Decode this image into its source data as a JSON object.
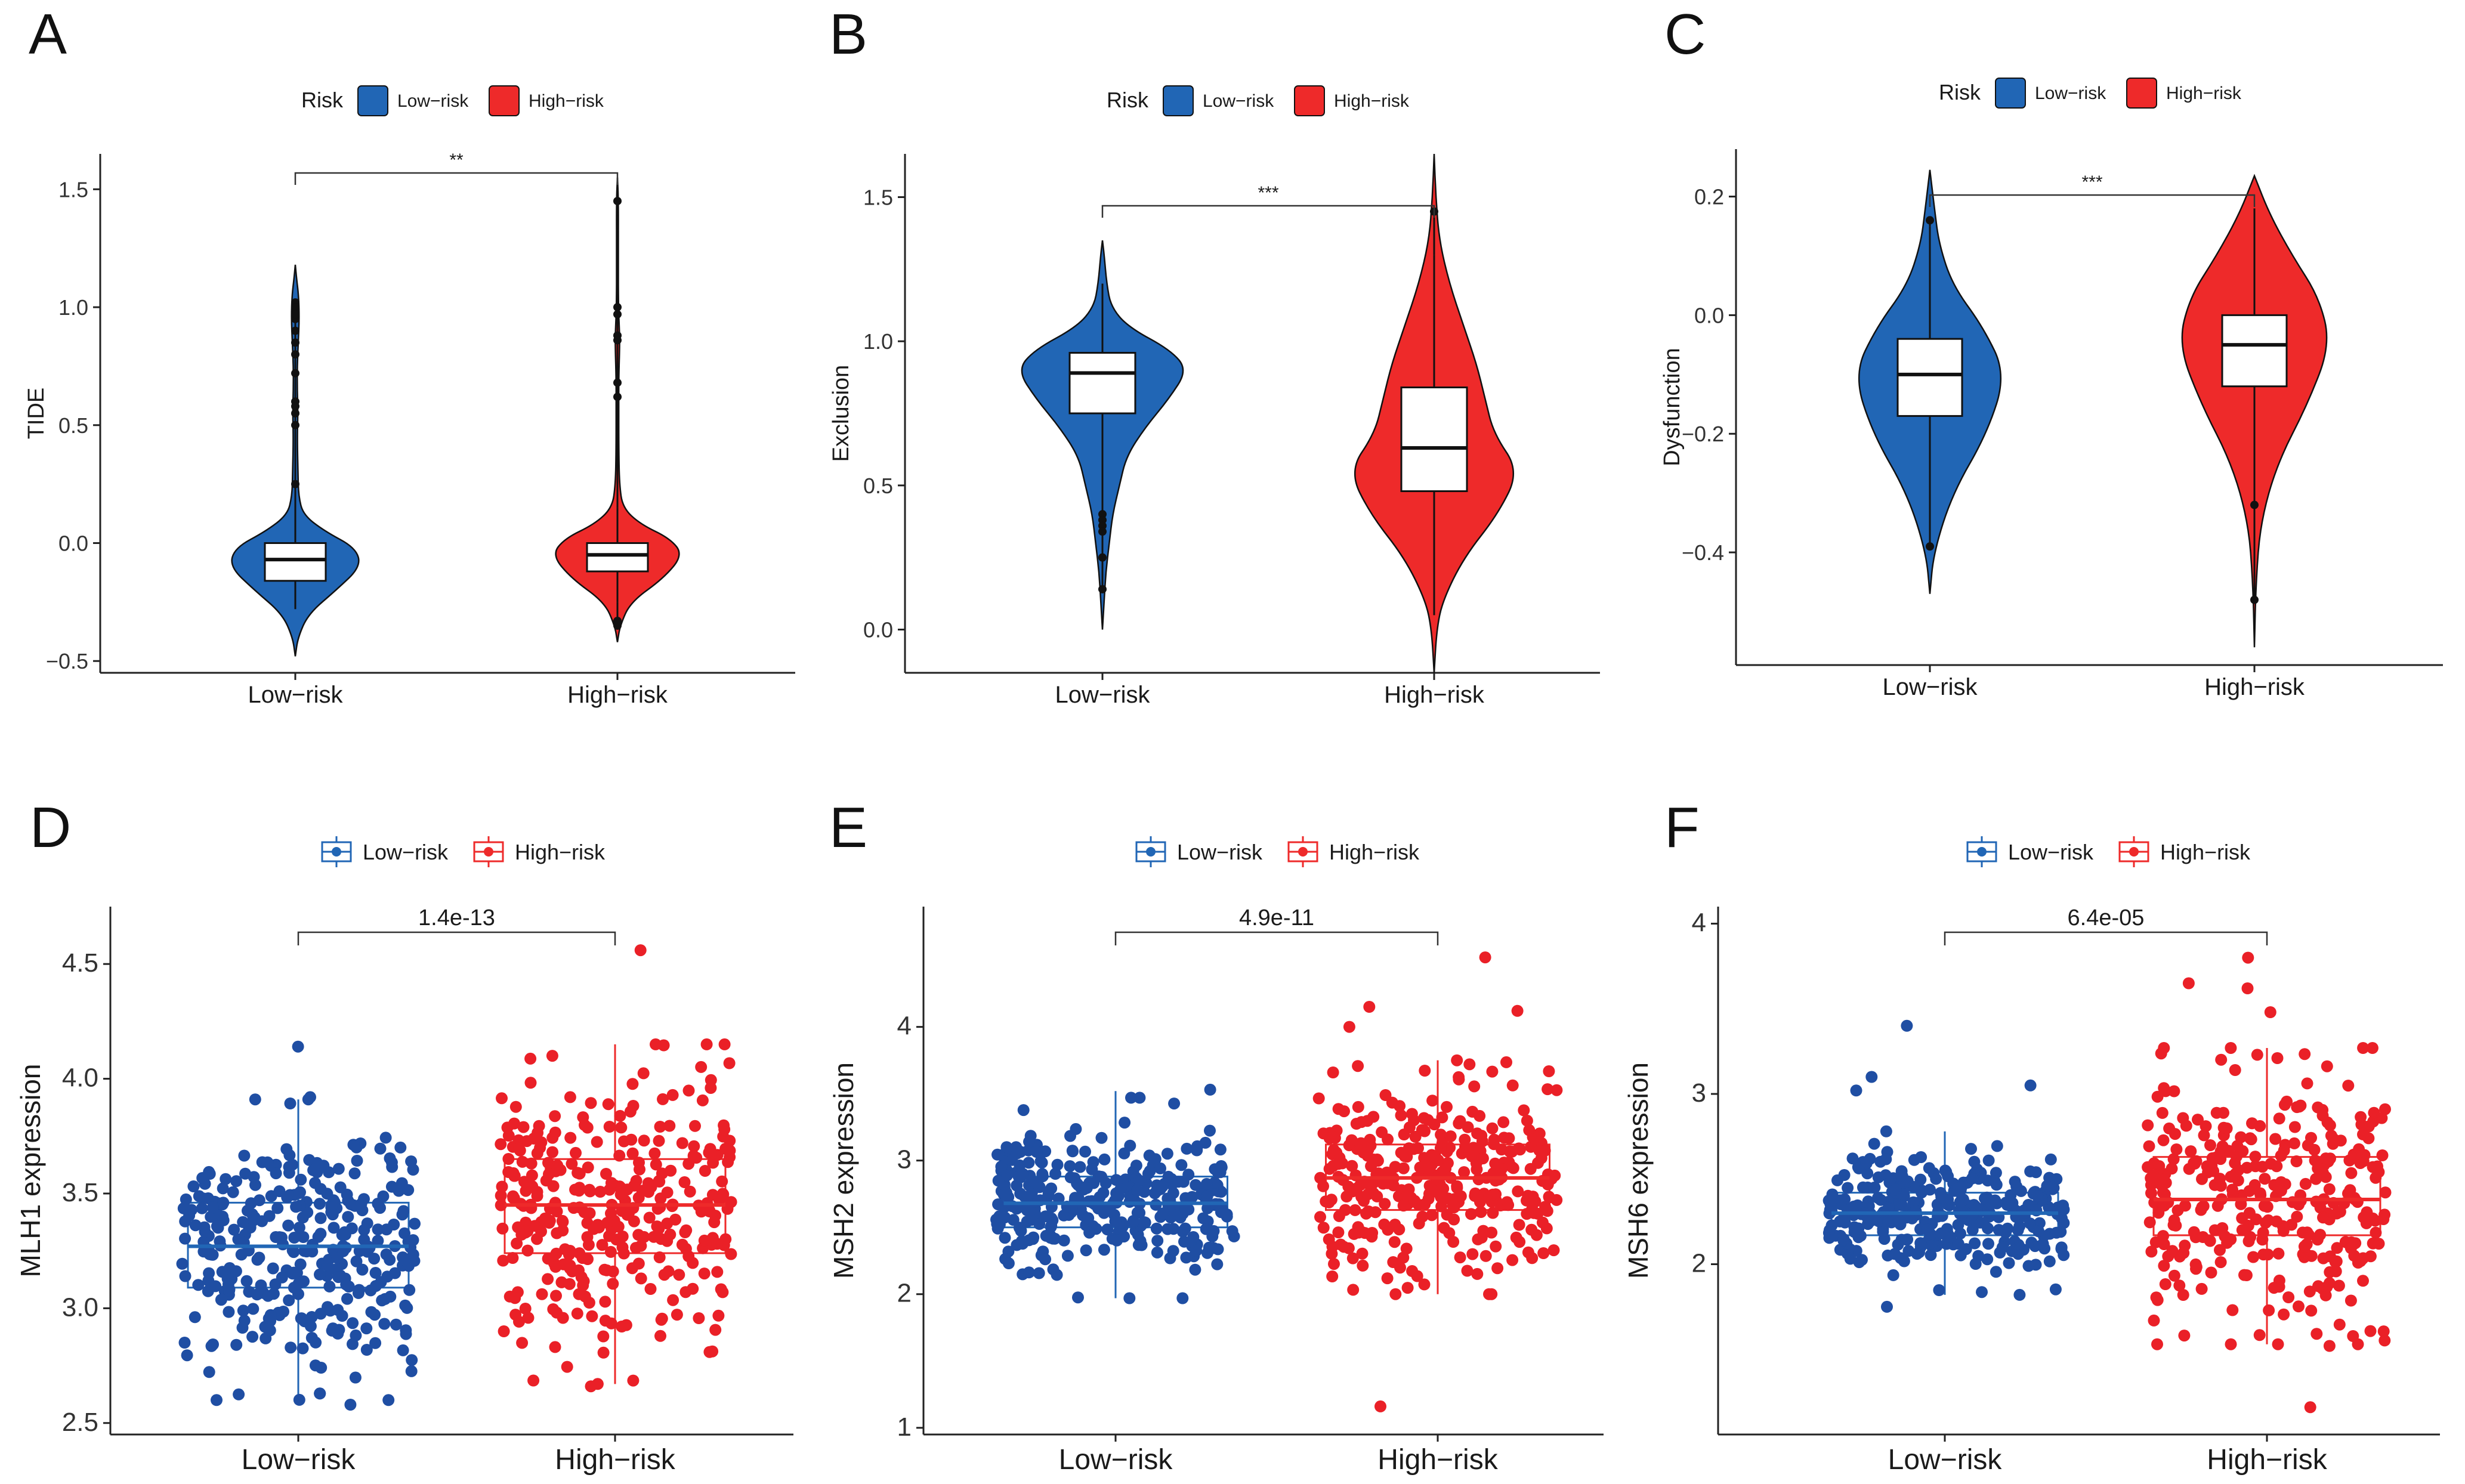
{
  "colors": {
    "low": "#2166b5",
    "high": "#ee2a2a",
    "low_point": "#1f4ea3",
    "high_point": "#ea2027",
    "axis": "#222222"
  },
  "chart_data": [
    {
      "panel": "A",
      "type": "violin",
      "ylabel": "TIDE",
      "ylim": [
        -0.55,
        1.65
      ],
      "yticks": [
        "1.5",
        "1.0",
        "0.5",
        "0.0",
        "-0.5"
      ],
      "ytick_values": [
        1.5,
        1.0,
        0.5,
        0.0,
        -0.5
      ],
      "categories": [
        "Low-risk",
        "High-risk"
      ],
      "legend_title": "Risk",
      "legend": [
        "Low-risk",
        "High-risk"
      ],
      "significance": "**",
      "series": [
        {
          "name": "Low-risk",
          "min": -0.48,
          "max": 1.18,
          "q1": -0.16,
          "median": -0.07,
          "q3": 0.0,
          "whisker_low": -0.28,
          "whisker_high": 0.12,
          "outliers": [
            1.02,
            1.0,
            0.98,
            0.95,
            0.9,
            0.85,
            0.8,
            0.72,
            0.6,
            0.58,
            0.55,
            0.5,
            0.25,
            0.98,
            0.97
          ],
          "density": [
            [
              -0.48,
              0.0
            ],
            [
              -0.4,
              0.04
            ],
            [
              -0.3,
              0.2
            ],
            [
              -0.2,
              0.62
            ],
            [
              -0.1,
              1.0
            ],
            [
              -0.02,
              0.92
            ],
            [
              0.05,
              0.45
            ],
            [
              0.12,
              0.12
            ],
            [
              0.2,
              0.05
            ],
            [
              0.3,
              0.04
            ],
            [
              0.45,
              0.03
            ],
            [
              0.55,
              0.04
            ],
            [
              0.65,
              0.03
            ],
            [
              0.75,
              0.03
            ],
            [
              0.85,
              0.045
            ],
            [
              0.95,
              0.06
            ],
            [
              1.05,
              0.05
            ],
            [
              1.12,
              0.02
            ],
            [
              1.18,
              0.0
            ]
          ]
        },
        {
          "name": "High-risk",
          "min": -0.42,
          "max": 1.55,
          "q1": -0.12,
          "median": -0.05,
          "q3": 0.0,
          "whisker_low": -0.25,
          "whisker_high": 0.15,
          "outliers": [
            1.45,
            1.0,
            0.97,
            0.88,
            0.86,
            0.68,
            0.62,
            -0.33,
            -0.35
          ],
          "density": [
            [
              -0.42,
              0.0
            ],
            [
              -0.35,
              0.04
            ],
            [
              -0.25,
              0.2
            ],
            [
              -0.15,
              0.7
            ],
            [
              -0.05,
              1.0
            ],
            [
              0.02,
              0.8
            ],
            [
              0.08,
              0.35
            ],
            [
              0.15,
              0.08
            ],
            [
              0.25,
              0.03
            ],
            [
              0.4,
              0.02
            ],
            [
              0.6,
              0.02
            ],
            [
              0.7,
              0.02
            ],
            [
              0.85,
              0.035
            ],
            [
              0.9,
              0.03
            ],
            [
              1.0,
              0.015
            ],
            [
              1.2,
              0.012
            ],
            [
              1.45,
              0.015
            ],
            [
              1.55,
              0.0
            ]
          ]
        }
      ]
    },
    {
      "panel": "B",
      "type": "violin",
      "ylabel": "Exclusion",
      "ylim": [
        -0.15,
        1.65
      ],
      "yticks": [
        "1.5",
        "1.0",
        "0.5",
        "0.0"
      ],
      "ytick_values": [
        1.5,
        1.0,
        0.5,
        0.0
      ],
      "categories": [
        "Low-risk",
        "High-risk"
      ],
      "legend_title": "Risk",
      "legend": [
        "Low-risk",
        "High-risk"
      ],
      "significance": "***",
      "series": [
        {
          "name": "Low-risk",
          "min": 0.0,
          "max": 1.35,
          "q1": 0.75,
          "median": 0.89,
          "q3": 0.96,
          "whisker_low": 0.45,
          "whisker_high": 1.2,
          "outliers": [
            0.4,
            0.38,
            0.36,
            0.34,
            0.25,
            0.14
          ],
          "density": [
            [
              0.0,
              0.0
            ],
            [
              0.1,
              0.02
            ],
            [
              0.2,
              0.04
            ],
            [
              0.3,
              0.08
            ],
            [
              0.4,
              0.12
            ],
            [
              0.5,
              0.2
            ],
            [
              0.6,
              0.28
            ],
            [
              0.7,
              0.5
            ],
            [
              0.8,
              0.78
            ],
            [
              0.9,
              1.0
            ],
            [
              0.97,
              0.8
            ],
            [
              1.05,
              0.3
            ],
            [
              1.12,
              0.1
            ],
            [
              1.2,
              0.05
            ],
            [
              1.3,
              0.02
            ],
            [
              1.35,
              0.0
            ]
          ]
        },
        {
          "name": "High-risk",
          "min": -0.15,
          "max": 1.65,
          "q1": 0.48,
          "median": 0.63,
          "q3": 0.84,
          "whisker_low": 0.05,
          "whisker_high": 1.3,
          "outliers": [
            1.45
          ],
          "density": [
            [
              -0.15,
              0.0
            ],
            [
              0.0,
              0.03
            ],
            [
              0.1,
              0.1
            ],
            [
              0.25,
              0.35
            ],
            [
              0.4,
              0.75
            ],
            [
              0.55,
              1.0
            ],
            [
              0.68,
              0.7
            ],
            [
              0.8,
              0.6
            ],
            [
              0.92,
              0.5
            ],
            [
              1.05,
              0.35
            ],
            [
              1.2,
              0.18
            ],
            [
              1.35,
              0.06
            ],
            [
              1.5,
              0.02
            ],
            [
              1.65,
              0.0
            ]
          ]
        }
      ]
    },
    {
      "panel": "C",
      "type": "violin",
      "ylabel": "Dysfunction",
      "ylim": [
        -0.59,
        0.28
      ],
      "yticks": [
        "0.2",
        "0.0",
        "-0.2",
        "-0.4"
      ],
      "ytick_values": [
        0.2,
        0.0,
        -0.2,
        -0.4
      ],
      "categories": [
        "Low-risk",
        "High-risk"
      ],
      "legend_title": "Risk",
      "legend": [
        "Low-risk",
        "High-risk"
      ],
      "significance": "***",
      "series": [
        {
          "name": "Low-risk",
          "min": -0.47,
          "max": 0.245,
          "q1": -0.17,
          "median": -0.1,
          "q3": -0.04,
          "whisker_low": -0.38,
          "whisker_high": 0.15,
          "outliers": [
            0.16,
            -0.39
          ],
          "density": [
            [
              -0.47,
              0.0
            ],
            [
              -0.4,
              0.05
            ],
            [
              -0.3,
              0.3
            ],
            [
              -0.2,
              0.75
            ],
            [
              -0.1,
              1.0
            ],
            [
              -0.02,
              0.7
            ],
            [
              0.05,
              0.3
            ],
            [
              0.12,
              0.12
            ],
            [
              0.18,
              0.06
            ],
            [
              0.245,
              0.0
            ]
          ]
        },
        {
          "name": "High-risk",
          "min": -0.56,
          "max": 0.235,
          "q1": -0.12,
          "median": -0.05,
          "q3": 0.0,
          "whisker_low": -0.32,
          "whisker_high": 0.18,
          "outliers": [
            -0.32,
            -0.48
          ],
          "density": [
            [
              -0.56,
              0.0
            ],
            [
              -0.45,
              0.02
            ],
            [
              -0.35,
              0.08
            ],
            [
              -0.25,
              0.3
            ],
            [
              -0.15,
              0.7
            ],
            [
              -0.05,
              1.0
            ],
            [
              0.03,
              0.85
            ],
            [
              0.1,
              0.5
            ],
            [
              0.17,
              0.2
            ],
            [
              0.235,
              0.0
            ]
          ]
        }
      ]
    },
    {
      "panel": "D",
      "type": "box_jitter",
      "ylabel": "MLH1 expression",
      "ylim": [
        2.45,
        4.75
      ],
      "yticks": [
        "4.5",
        "4.0",
        "3.5",
        "3.0",
        "2.5"
      ],
      "ytick_values": [
        4.5,
        4.0,
        3.5,
        3.0,
        2.5
      ],
      "categories": [
        "Low-risk",
        "High-risk"
      ],
      "legend": [
        "Low-risk",
        "High-risk"
      ],
      "significance": "1.4e-13",
      "series": [
        {
          "name": "Low-risk",
          "q1": 3.09,
          "median": 3.27,
          "q3": 3.46,
          "whisker_low": 2.6,
          "whisker_high": 3.91,
          "mean": 3.27,
          "sd": 0.26,
          "n": 330,
          "extremes": [
            4.14,
            2.58,
            2.6,
            3.92
          ]
        },
        {
          "name": "High-risk",
          "q1": 3.24,
          "median": 3.45,
          "q3": 3.65,
          "whisker_low": 2.67,
          "whisker_high": 4.15,
          "mean": 3.44,
          "sd": 0.3,
          "n": 330,
          "extremes": [
            4.56,
            2.66,
            4.15,
            4.1
          ]
        }
      ]
    },
    {
      "panel": "E",
      "type": "box_jitter",
      "ylabel": "MSH2 expression",
      "ylim": [
        0.95,
        4.9
      ],
      "yticks": [
        "4",
        "3",
        "2",
        "1"
      ],
      "ytick_values": [
        4,
        3,
        2,
        1
      ],
      "categories": [
        "Low-risk",
        "High-risk"
      ],
      "legend": [
        "Low-risk",
        "High-risk"
      ],
      "significance": "4.9e-11",
      "series": [
        {
          "name": "Low-risk",
          "q1": 2.5,
          "median": 2.68,
          "q3": 2.88,
          "whisker_low": 1.97,
          "whisker_high": 3.52,
          "mean": 2.69,
          "sd": 0.26,
          "n": 330,
          "extremes": [
            3.53,
            1.97,
            3.47
          ]
        },
        {
          "name": "High-risk",
          "q1": 2.63,
          "median": 2.87,
          "q3": 3.12,
          "whisker_low": 2.0,
          "whisker_high": 3.75,
          "mean": 2.87,
          "sd": 0.36,
          "n": 330,
          "extremes": [
            4.52,
            1.16,
            4.15,
            4.12,
            4.0,
            3.72
          ]
        }
      ]
    },
    {
      "panel": "F",
      "type": "box_jitter",
      "ylabel": "MSH6 expression",
      "ylim": [
        1.0,
        4.1
      ],
      "yticks": [
        "4",
        "3",
        "2"
      ],
      "ytick_values": [
        4,
        3,
        2
      ],
      "categories": [
        "Low-risk",
        "High-risk"
      ],
      "legend": [
        "Low-risk",
        "High-risk"
      ],
      "significance": "6.4e-05",
      "series": [
        {
          "name": "Low-risk",
          "q1": 2.17,
          "median": 2.3,
          "q3": 2.42,
          "whisker_low": 1.82,
          "whisker_high": 2.78,
          "mean": 2.3,
          "sd": 0.19,
          "n": 330,
          "extremes": [
            3.4,
            3.1,
            3.05,
            3.02,
            1.75
          ]
        },
        {
          "name": "High-risk",
          "q1": 2.17,
          "median": 2.38,
          "q3": 2.63,
          "whisker_low": 1.53,
          "whisker_high": 3.27,
          "mean": 2.4,
          "sd": 0.35,
          "n": 330,
          "extremes": [
            3.8,
            3.65,
            3.62,
            3.48,
            1.16,
            1.52
          ]
        }
      ]
    }
  ]
}
